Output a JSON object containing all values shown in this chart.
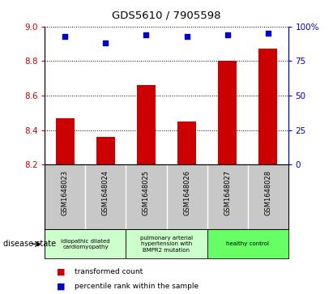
{
  "title": "GDS5610 / 7905598",
  "samples": [
    "GSM1648023",
    "GSM1648024",
    "GSM1648025",
    "GSM1648026",
    "GSM1648027",
    "GSM1648028"
  ],
  "bar_values": [
    8.47,
    8.36,
    8.66,
    8.45,
    8.8,
    8.87
  ],
  "scatter_values": [
    93,
    88,
    94,
    93,
    94,
    95
  ],
  "ylim_left": [
    8.2,
    9.0
  ],
  "ylim_right": [
    0,
    100
  ],
  "yticks_left": [
    8.2,
    8.4,
    8.6,
    8.8,
    9.0
  ],
  "yticks_right": [
    0,
    25,
    50,
    75,
    100
  ],
  "bar_color": "#cc0000",
  "scatter_color": "#0000cc",
  "bar_base": 8.2,
  "disease_labels": [
    "idiopathic dilated\ncardiomyopathy",
    "pulmonary arterial\nhypertension with\nBMPR2 mutation",
    "healthy control"
  ],
  "disease_colors": [
    "#ccffcc",
    "#ccffcc",
    "#66ff66"
  ],
  "disease_ranges": [
    [
      0,
      2
    ],
    [
      2,
      4
    ],
    [
      4,
      6
    ]
  ],
  "legend_bar_label": "transformed count",
  "legend_scatter_label": "percentile rank within the sample",
  "disease_state_label": "disease state",
  "tick_label_color_left": "#cc0000",
  "tick_label_color_right": "#0000cc",
  "xlabel_area_bg": "#c8c8c8"
}
